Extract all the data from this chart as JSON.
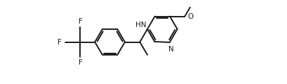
{
  "background_color": "#ffffff",
  "line_color": "#1a1a1a",
  "lw": 1.4,
  "fs": 7.5,
  "figsize": [
    4.1,
    1.21
  ],
  "dpi": 100,
  "xlim": [
    -0.5,
    9.5
  ],
  "ylim": [
    0.0,
    4.2
  ]
}
